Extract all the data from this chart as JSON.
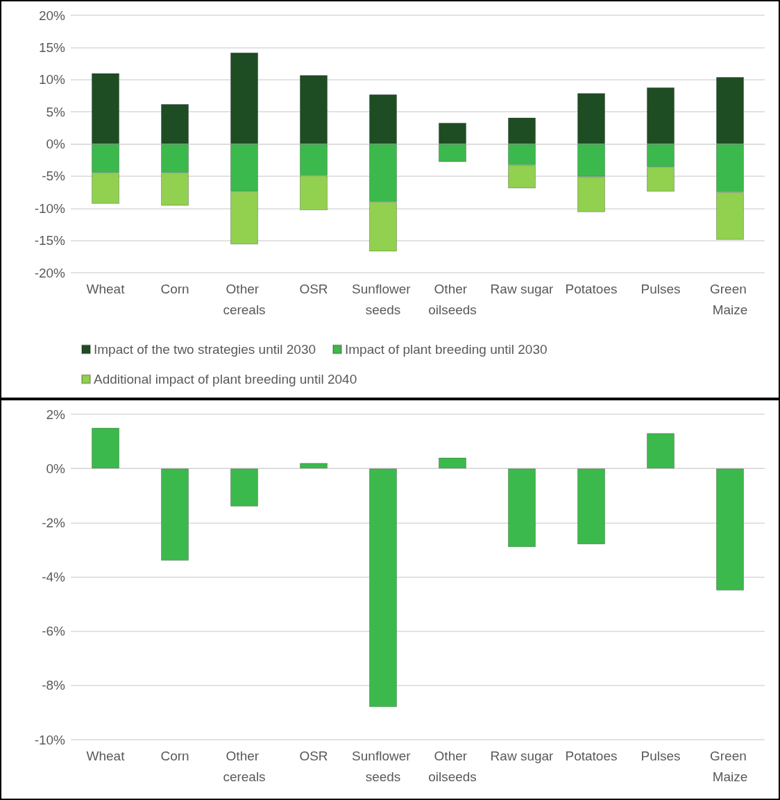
{
  "chart_data": [
    {
      "type": "bar",
      "stacked": true,
      "categories": [
        "Wheat",
        "Corn",
        "Other cereals",
        "OSR",
        "Sunflower seeds",
        "Other oilseeds",
        "Raw sugar",
        "Potatoes",
        "Pulses",
        "Green Maize"
      ],
      "series": [
        {
          "name": "Impact of the two strategies until 2030",
          "color": "#1e4d23",
          "values": [
            11.0,
            6.2,
            14.2,
            10.7,
            7.7,
            3.3,
            4.1,
            7.9,
            8.8,
            10.4
          ]
        },
        {
          "name": "Impact of plant breeding until 2030",
          "color": "#3cb94c",
          "values": [
            -4.5,
            -4.5,
            -7.4,
            -4.9,
            -9.0,
            -2.8,
            -3.3,
            -5.1,
            -3.6,
            -7.5
          ]
        },
        {
          "name": "Additional impact of plant breeding until 2040",
          "color": "#92d050",
          "values": [
            -4.8,
            -5.1,
            -8.2,
            -5.4,
            -7.7,
            null,
            -3.6,
            -5.5,
            -3.8,
            -7.4
          ]
        }
      ],
      "ylim": [
        -20,
        20
      ],
      "yticks": [
        {
          "value": -20,
          "label": "-20%"
        },
        {
          "value": -15,
          "label": "-15%"
        },
        {
          "value": -10,
          "label": "-10%"
        },
        {
          "value": -5,
          "label": "-5%"
        },
        {
          "value": 0,
          "label": "0%"
        },
        {
          "value": 5,
          "label": "5%"
        },
        {
          "value": 10,
          "label": "10%"
        },
        {
          "value": 15,
          "label": "15%"
        },
        {
          "value": 20,
          "label": "20%"
        }
      ],
      "grid": "y",
      "legend": "bottom"
    },
    {
      "type": "bar",
      "categories": [
        "Wheat",
        "Corn",
        "Other cereals",
        "OSR",
        "Sunflower seeds",
        "Other oilseeds",
        "Raw sugar",
        "Potatoes",
        "Pulses",
        "Green Maize"
      ],
      "series": [
        {
          "color": "#3cb94c",
          "values": [
            1.5,
            -3.4,
            -1.4,
            0.2,
            -8.8,
            0.4,
            -2.9,
            -2.8,
            1.3,
            -4.5
          ]
        }
      ],
      "ylim": [
        -10,
        2
      ],
      "yticks": [
        {
          "value": -10,
          "label": "-10%"
        },
        {
          "value": -8,
          "label": "-8%"
        },
        {
          "value": -6,
          "label": "-6%"
        },
        {
          "value": -4,
          "label": "-4%"
        },
        {
          "value": -2,
          "label": "-2%"
        },
        {
          "value": 0,
          "label": "0%"
        },
        {
          "value": 2,
          "label": "2%"
        }
      ],
      "grid": "y"
    }
  ]
}
